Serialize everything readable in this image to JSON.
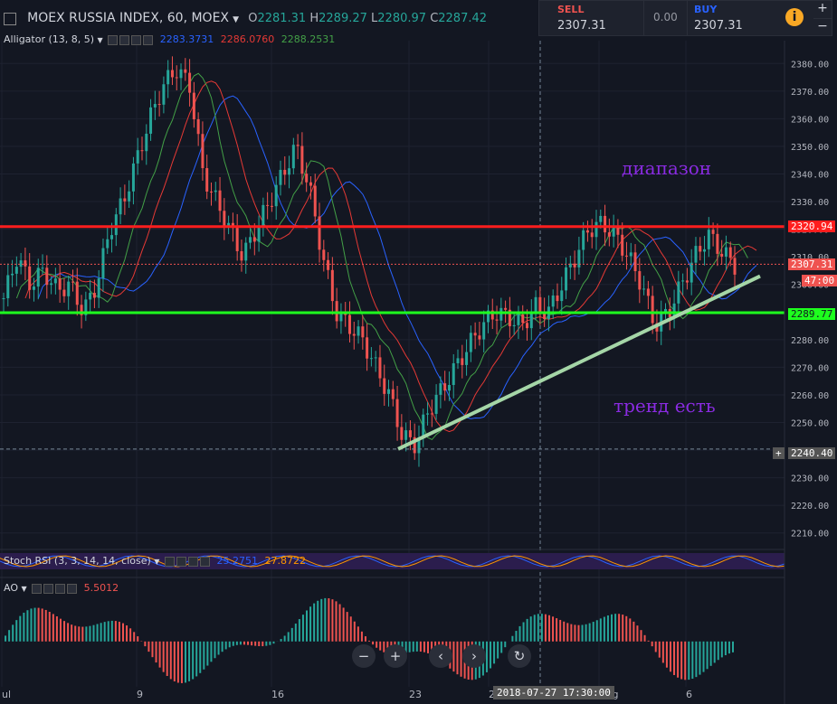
{
  "header": {
    "symbol": "MOEX RUSSIA INDEX, 60, MOEX",
    "o_label": "O",
    "o_value": "2281.31",
    "h_label": "H",
    "h_value": "2289.27",
    "l_label": "L",
    "l_value": "2280.97",
    "c_label": "C",
    "c_value": "2287.42"
  },
  "trade_panel": {
    "sell_label": "SELL",
    "sell_price": "2307.31",
    "spread": "0.00",
    "buy_label": "BUY",
    "buy_price": "2307.31",
    "info_icon": "info-icon",
    "plus": "+",
    "minus": "−"
  },
  "indicators": {
    "alligator": {
      "label": "Alligator (13, 8, 5)",
      "v1": "2283.3731",
      "v2": "2286.0760",
      "v3": "2288.2531",
      "colors": [
        "#2962ff",
        "#e53935",
        "#43a047"
      ]
    },
    "stoch": {
      "label": "Stoch RSI (3, 3, 14, 14, close)",
      "k": "25.2751",
      "d": "27.8722"
    },
    "ao": {
      "label": "AO",
      "value": "5.5012"
    }
  },
  "annotations": {
    "range_text": "диапазон",
    "trend_text": "тренд есть"
  },
  "price_badges": {
    "resistance": "2320.94",
    "last": "2307.31",
    "countdown": "47:00",
    "support": "2289.77",
    "crosshair": "2240.40",
    "crosshair_plus": "+"
  },
  "crosshair_date": "2018-07-27 17:30:00",
  "x_axis_labels": [
    "ul",
    "9",
    "16",
    "23",
    "2",
    "Aug",
    "6"
  ],
  "nav": {
    "minus": "−",
    "plus": "+",
    "prev": "‹",
    "next": "›",
    "reset": "↻"
  },
  "colors": {
    "up": "#26a69a",
    "down": "#ef5350",
    "resistance": "#ff1e1e",
    "support": "#1eff1e",
    "trendline": "#a5d6a7",
    "annotation": "#8a2be2"
  },
  "chart_data": [
    {
      "type": "candlestick",
      "title": "MOEX RUSSIA INDEX, 60, MOEX",
      "ylim": [
        2205,
        2385
      ],
      "y_ticks": [
        2210,
        2220,
        2230,
        2240,
        2250,
        2260,
        2270,
        2280,
        2290,
        2300,
        2310,
        2320,
        2330,
        2340,
        2350,
        2360,
        2370,
        2380
      ],
      "x_tick_labels": [
        "ul",
        "9",
        "16",
        "23",
        "2",
        "Aug",
        "6"
      ],
      "close_path": [
        2295,
        2310,
        2300,
        2305,
        2298,
        2300,
        2290,
        2300,
        2320,
        2330,
        2345,
        2360,
        2372,
        2378,
        2372,
        2340,
        2330,
        2320,
        2310,
        2320,
        2330,
        2340,
        2350,
        2335,
        2310,
        2290,
        2285,
        2280,
        2270,
        2260,
        2245,
        2242,
        2255,
        2262,
        2270,
        2278,
        2285,
        2290,
        2288,
        2285,
        2292,
        2290,
        2300,
        2310,
        2320,
        2322,
        2318,
        2310,
        2300,
        2285,
        2290,
        2300,
        2310,
        2318,
        2312,
        2307
      ],
      "levels": [
        {
          "name": "resistance",
          "value": 2320.94
        },
        {
          "name": "support",
          "value": 2289.77
        },
        {
          "name": "last",
          "value": 2307.31
        },
        {
          "name": "crosshair",
          "value": 2240.4
        }
      ],
      "trendline": {
        "from": {
          "date": "2018-07-23",
          "value": 2240.4
        },
        "to": {
          "date": "2018-08-08",
          "value": 2303
        }
      }
    },
    {
      "type": "line",
      "title": "Stoch RSI (3, 3, 14, 14, close)",
      "series": [
        {
          "name": "K",
          "last": 25.2751
        },
        {
          "name": "D",
          "last": 27.8722
        }
      ]
    },
    {
      "type": "bar",
      "title": "AO",
      "ylim": [
        -30,
        45
      ],
      "y_ticks": [
        -20,
        0,
        20,
        40
      ],
      "last": 5.5012
    }
  ]
}
